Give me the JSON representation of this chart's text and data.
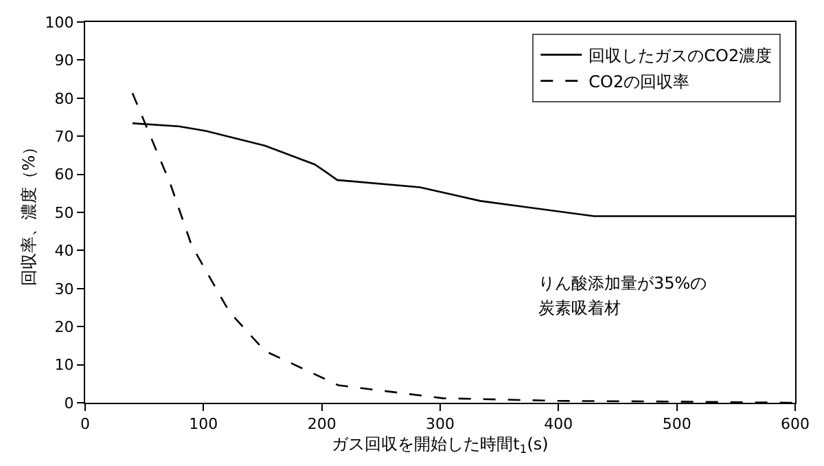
{
  "chart_data": {
    "type": "line",
    "xlabel": "ガス回収を開始した時間t$_{1}$(s)",
    "ylabel": "回収率、濃度（%）",
    "xlim": [
      0,
      600
    ],
    "xticks": [
      0,
      100,
      200,
      300,
      400,
      500,
      600
    ],
    "ylim": [
      0,
      100
    ],
    "yticks": [
      0,
      10,
      20,
      30,
      40,
      50,
      60,
      70,
      80,
      90,
      100
    ],
    "legend": "top right",
    "series": [
      {
        "name": "回収したガスのCO2濃度",
        "color": "#000000",
        "line_style": "solid",
        "x": [
          40,
          79,
          102,
          152,
          194,
          204,
          213,
          283,
          317,
          334,
          430,
          600
        ],
        "values": [
          73.4,
          72.6,
          71.4,
          67.5,
          62.6,
          60.5,
          58.5,
          56.6,
          54.2,
          53,
          49,
          49
        ]
      },
      {
        "name": "CO2の回収率",
        "color": "#000000",
        "line_style": "dashed",
        "x": [
          40,
          72,
          90,
          122,
          152,
          214,
          302,
          400,
          500,
          600
        ],
        "values": [
          81.3,
          57.5,
          41.3,
          23.8,
          13.6,
          4.6,
          1.2,
          0.5,
          0.3,
          0
        ]
      }
    ],
    "annotations": [
      "りん酸添加量が35%の",
      "炭素吸着材"
    ]
  }
}
